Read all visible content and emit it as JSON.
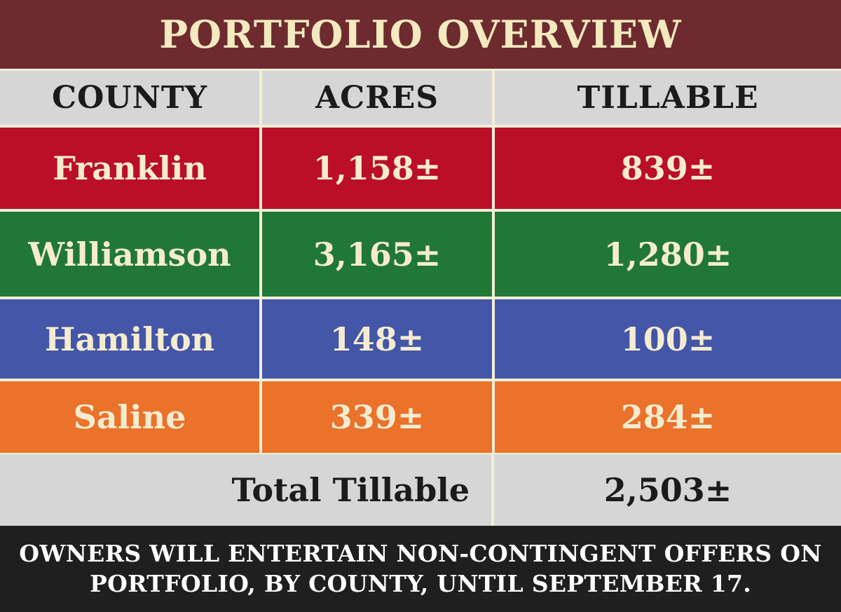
{
  "title": "PORTFOLIO OVERVIEW",
  "headers": [
    "COUNTY",
    "ACRES",
    "TILLABLE"
  ],
  "rows": [
    {
      "county": "Franklin",
      "acres": "1,158±",
      "tillable": "839±",
      "color": "#bb0f27"
    },
    {
      "county": "Williamson",
      "acres": "3,165±",
      "tillable": "1,280±",
      "color": "#217836"
    },
    {
      "county": "Hamilton",
      "acres": "148±",
      "tillable": "100±",
      "color": "#4456a8"
    },
    {
      "county": "Saline",
      "acres": "339±",
      "tillable": "284±",
      "color": "#ea722b"
    }
  ],
  "total": {
    "label": "Total Tillable",
    "value": "2,503±"
  },
  "footer": {
    "line1": "OWNERS WILL ENTERTAIN NON-CONTINGENT OFFERS ON",
    "line2": "PORTFOLIO, BY COUNTY, UNTIL SEPTEMBER 17."
  },
  "colors": {
    "title_bg": "#6e2b2f",
    "title_text": "#f4eac0",
    "header_bg": "#d6d6d6",
    "footer_bg": "#1f1f1f",
    "divider": "#f3efd7"
  }
}
